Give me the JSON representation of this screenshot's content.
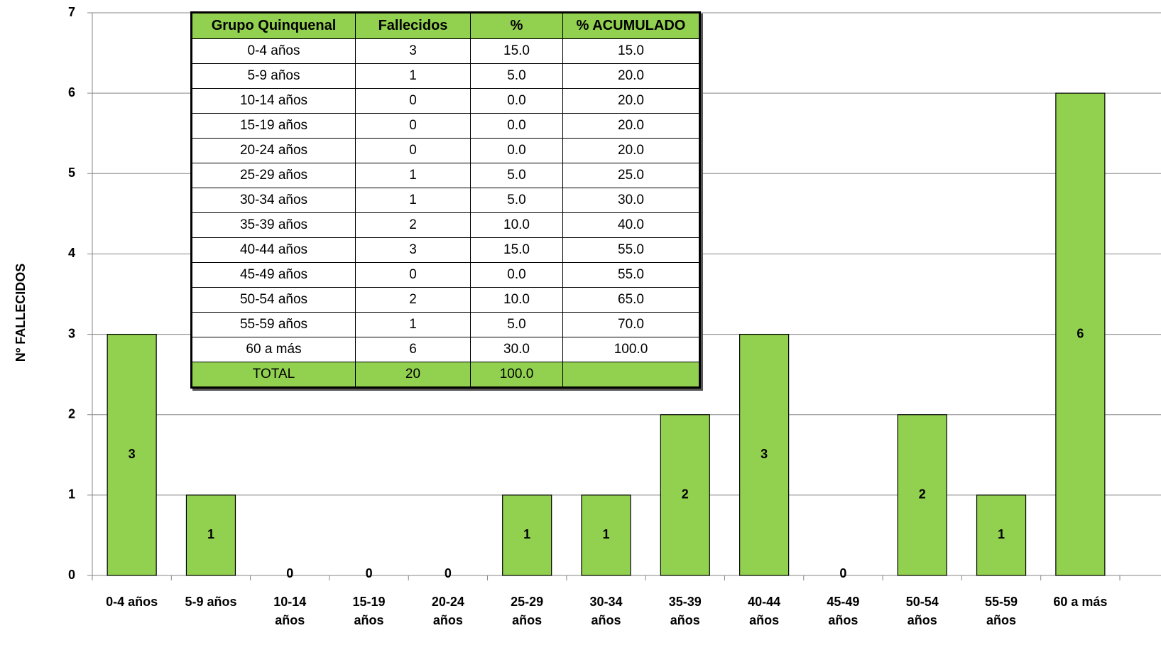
{
  "chart_data": {
    "type": "bar",
    "y_label": "Nº FALLECIDOS",
    "categories": [
      "0-4 años",
      "5-9 años",
      "10-14 años",
      "15-19 años",
      "20-24 años",
      "25-29 años",
      "30-34 años",
      "35-39 años",
      "40-44 años",
      "45-49 años",
      "50-54 años",
      "55-59 años",
      "60 a más"
    ],
    "values": [
      3,
      1,
      0,
      0,
      0,
      1,
      1,
      2,
      3,
      0,
      2,
      1,
      6
    ],
    "color": "#92d050",
    "ylim": [
      0,
      7
    ],
    "yticks": [
      0,
      1,
      2,
      3,
      4,
      5,
      6,
      7
    ],
    "grid": true
  },
  "table": {
    "header": [
      "Grupo Quinquenal",
      "Fallecidos",
      "%",
      "% ACUMULADO"
    ],
    "rows": [
      [
        "0-4 años",
        "3",
        "15.0",
        "15.0"
      ],
      [
        "5-9 años",
        "1",
        "5.0",
        "20.0"
      ],
      [
        "10-14 años",
        "0",
        "0.0",
        "20.0"
      ],
      [
        "15-19 años",
        "0",
        "0.0",
        "20.0"
      ],
      [
        "20-24 años",
        "0",
        "0.0",
        "20.0"
      ],
      [
        "25-29 años",
        "1",
        "5.0",
        "25.0"
      ],
      [
        "30-34 años",
        "1",
        "5.0",
        "30.0"
      ],
      [
        "35-39 años",
        "2",
        "10.0",
        "40.0"
      ],
      [
        "40-44 años",
        "3",
        "15.0",
        "55.0"
      ],
      [
        "45-49 años",
        "0",
        "0.0",
        "55.0"
      ],
      [
        "50-54 años",
        "2",
        "10.0",
        "65.0"
      ],
      [
        "55-59 años",
        "1",
        "5.0",
        "70.0"
      ],
      [
        "60 a más",
        "6",
        "30.0",
        "100.0"
      ]
    ],
    "total": [
      "TOTAL",
      "20",
      "100.0"
    ]
  }
}
